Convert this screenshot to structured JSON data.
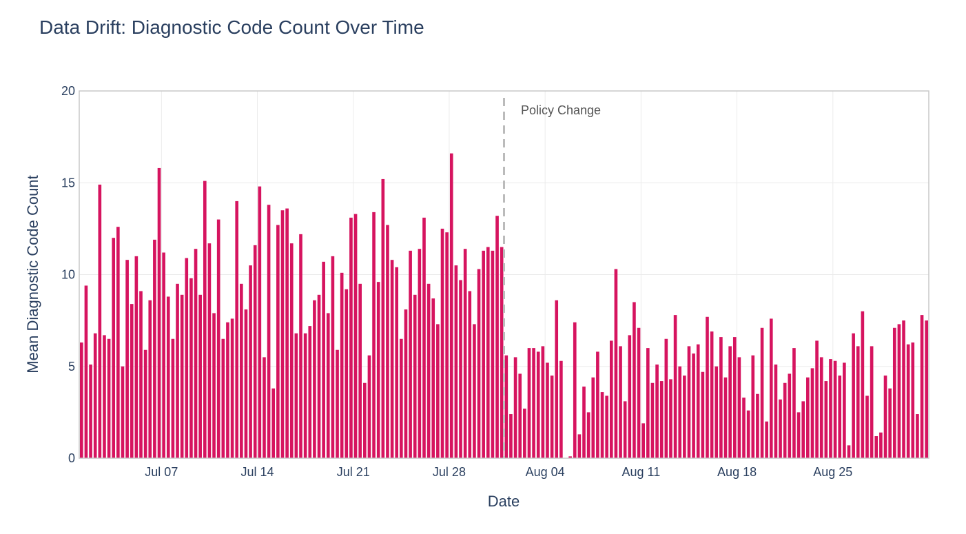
{
  "chart_data": {
    "type": "bar",
    "title": "Data Drift: Diagnostic Code Count Over Time",
    "xlabel": "Date",
    "ylabel": "Mean Diagnostic Code Count",
    "ylim": [
      0,
      20
    ],
    "y_ticks": [
      "0",
      "5",
      "10",
      "15",
      "20"
    ],
    "x_ticks": [
      {
        "label": "Jul 07",
        "value": "2024-07-07"
      },
      {
        "label": "Jul 14",
        "value": "2024-07-14"
      },
      {
        "label": "Jul 21",
        "value": "2024-07-21"
      },
      {
        "label": "Jul 28",
        "value": "2024-07-28"
      },
      {
        "label": "Aug 04",
        "value": "2024-08-04"
      },
      {
        "label": "Aug 11",
        "value": "2024-08-11"
      },
      {
        "label": "Aug 18",
        "value": "2024-08-18"
      },
      {
        "label": "Aug 25",
        "value": "2024-08-25"
      }
    ],
    "x_range": [
      "2024-07-01",
      "2024-09-01"
    ],
    "bar_interval_hours": 8,
    "first_bar": "2024-07-01",
    "bar_color": "#d6145f",
    "grid": true,
    "annotation": {
      "text": "Policy Change",
      "date": "2024-08-01"
    },
    "values": [
      6.3,
      9.4,
      5.1,
      6.8,
      14.9,
      6.7,
      6.5,
      12.0,
      12.6,
      5.0,
      10.8,
      8.4,
      11.0,
      9.1,
      5.9,
      8.6,
      11.9,
      15.8,
      11.2,
      8.8,
      6.5,
      9.5,
      8.9,
      10.9,
      9.8,
      11.4,
      8.9,
      15.1,
      11.7,
      7.9,
      13.0,
      6.5,
      7.4,
      7.6,
      14.0,
      9.5,
      8.1,
      10.5,
      11.6,
      14.8,
      5.5,
      13.8,
      3.8,
      12.7,
      13.5,
      13.6,
      11.7,
      6.8,
      12.2,
      6.8,
      7.2,
      8.6,
      8.9,
      10.7,
      7.9,
      11.0,
      5.9,
      10.1,
      9.2,
      13.1,
      13.3,
      9.5,
      4.1,
      5.6,
      13.4,
      9.6,
      15.2,
      12.7,
      10.8,
      10.4,
      6.5,
      8.1,
      11.3,
      8.9,
      11.4,
      13.1,
      9.5,
      8.7,
      7.3,
      12.5,
      12.3,
      16.6,
      10.5,
      9.7,
      11.4,
      9.1,
      7.3,
      10.3,
      11.3,
      11.5,
      11.3,
      13.2,
      11.5,
      5.6,
      2.4,
      5.5,
      4.6,
      2.7,
      6.0,
      6.0,
      5.8,
      6.1,
      5.2,
      4.5,
      8.6,
      5.3,
      0.0,
      0.1,
      7.4,
      1.3,
      3.9,
      2.5,
      4.4,
      5.8,
      3.6,
      3.4,
      6.4,
      10.3,
      6.1,
      3.1,
      6.7,
      8.5,
      7.1,
      1.9,
      6.0,
      4.1,
      5.1,
      4.2,
      6.5,
      4.3,
      7.8,
      5.0,
      4.5,
      6.1,
      5.7,
      6.2,
      4.7,
      7.7,
      6.9,
      5.0,
      6.6,
      4.4,
      6.1,
      6.6,
      5.5,
      3.3,
      2.6,
      5.6,
      3.5,
      7.1,
      2.0,
      7.6,
      5.1,
      3.2,
      4.1,
      4.6,
      6.0,
      2.5,
      3.1,
      4.4,
      4.9,
      6.4,
      5.5,
      4.2,
      5.4,
      5.3,
      4.5,
      5.2,
      0.7,
      6.8,
      6.1,
      8.0,
      3.4,
      6.1,
      1.2,
      1.4,
      4.5,
      3.8,
      7.1,
      7.3,
      7.5,
      6.2,
      6.3,
      2.4,
      7.8,
      7.5
    ]
  }
}
